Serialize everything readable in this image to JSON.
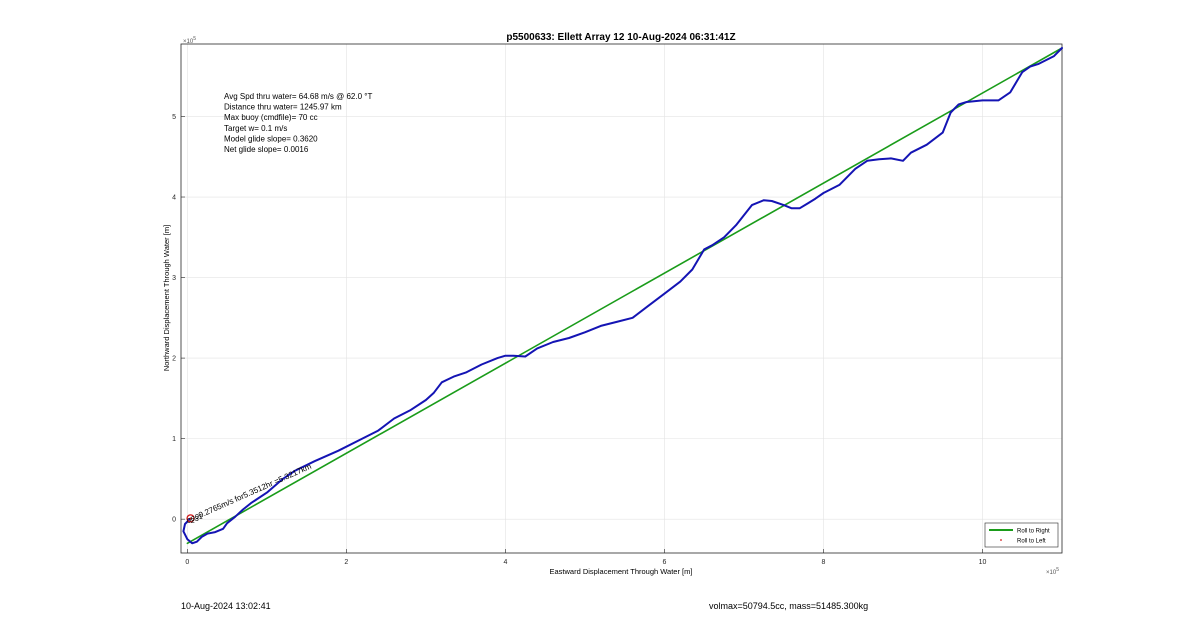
{
  "chart_data": {
    "type": "line",
    "title": "p5500633: Ellett Array 12 10-Aug-2024 06:31:41Z",
    "xlabel": "Eastward Displacement Through Water [m]",
    "ylabel": "Northward Displacement Through Water [m]",
    "x_exponent": "×10",
    "x_exponent_power": "5",
    "y_exponent": "×10",
    "y_exponent_power": "5",
    "xlim": [
      -0.08,
      11.0
    ],
    "ylim": [
      -0.42,
      5.9
    ],
    "xticks": [
      0,
      2,
      4,
      6,
      8,
      10
    ],
    "yticks": [
      0,
      1,
      2,
      3,
      4,
      5
    ],
    "grid": true,
    "legend_placement": "bottom-right",
    "series": [
      {
        "name": "Roll to Right",
        "color": "#1a9c1a",
        "style": "line",
        "x": [
          0.0,
          11.0
        ],
        "y": [
          -0.3,
          5.85
        ]
      },
      {
        "name": "Roll to Left",
        "color": "#d21a1a",
        "style": "marker"
      },
      {
        "color": "#1414b4",
        "style": "line",
        "x": [
          0.03,
          -0.03,
          -0.05,
          0.0,
          0.06,
          0.12,
          0.18,
          0.25,
          0.35,
          0.45,
          0.5,
          0.6,
          0.7,
          0.8,
          1.0,
          1.2,
          1.35,
          1.6,
          1.9,
          2.2,
          2.4,
          2.6,
          2.8,
          3.0,
          3.1,
          3.2,
          3.35,
          3.5,
          3.7,
          3.9,
          4.0,
          4.1,
          4.25,
          4.4,
          4.6,
          4.8,
          5.0,
          5.2,
          5.4,
          5.6,
          5.8,
          6.0,
          6.2,
          6.35,
          6.5,
          6.6,
          6.75,
          6.9,
          7.1,
          7.25,
          7.35,
          7.5,
          7.6,
          7.7,
          7.8,
          7.9,
          8.0,
          8.2,
          8.4,
          8.55,
          8.7,
          8.85,
          9.0,
          9.1,
          9.3,
          9.5,
          9.6,
          9.7,
          9.8,
          10.0,
          10.2,
          10.35,
          10.5,
          10.6,
          10.7,
          10.9,
          11.0
        ],
        "y": [
          0.0,
          -0.06,
          -0.15,
          -0.25,
          -0.3,
          -0.28,
          -0.22,
          -0.18,
          -0.16,
          -0.12,
          -0.05,
          0.03,
          0.12,
          0.2,
          0.33,
          0.5,
          0.6,
          0.72,
          0.85,
          1.0,
          1.1,
          1.25,
          1.35,
          1.48,
          1.57,
          1.7,
          1.77,
          1.82,
          1.92,
          2.0,
          2.03,
          2.03,
          2.02,
          2.12,
          2.2,
          2.25,
          2.32,
          2.4,
          2.45,
          2.5,
          2.65,
          2.8,
          2.95,
          3.1,
          3.35,
          3.4,
          3.5,
          3.65,
          3.9,
          3.96,
          3.95,
          3.9,
          3.86,
          3.86,
          3.92,
          3.98,
          4.05,
          4.15,
          4.35,
          4.45,
          4.47,
          4.48,
          4.45,
          4.55,
          4.65,
          4.8,
          5.05,
          5.15,
          5.18,
          5.2,
          5.2,
          5.3,
          5.55,
          5.62,
          5.65,
          5.75,
          5.85
        ]
      }
    ],
    "annotations": [
      {
        "text": "Avg Spd thru water= 64.68 m/s @  62.0 °T"
      },
      {
        "text": "Distance thru water= 1245.97 km"
      },
      {
        "text": "Max buoy (cmdfile)= 70 cc"
      },
      {
        "text": "Target w= 0.1 m/s"
      },
      {
        "text": "Model glide slope= 0.3620"
      },
      {
        "text": "Net glide slope= 0.0016"
      }
    ],
    "start_label": "0.2765m/s for5.3512hr =5.3217km",
    "start_point_labels": [
      "02",
      "03",
      "01"
    ]
  },
  "footer": {
    "left": "10-Aug-2024 13:02:41",
    "right": "volmax=50794.5cc, mass=51485.300kg"
  }
}
